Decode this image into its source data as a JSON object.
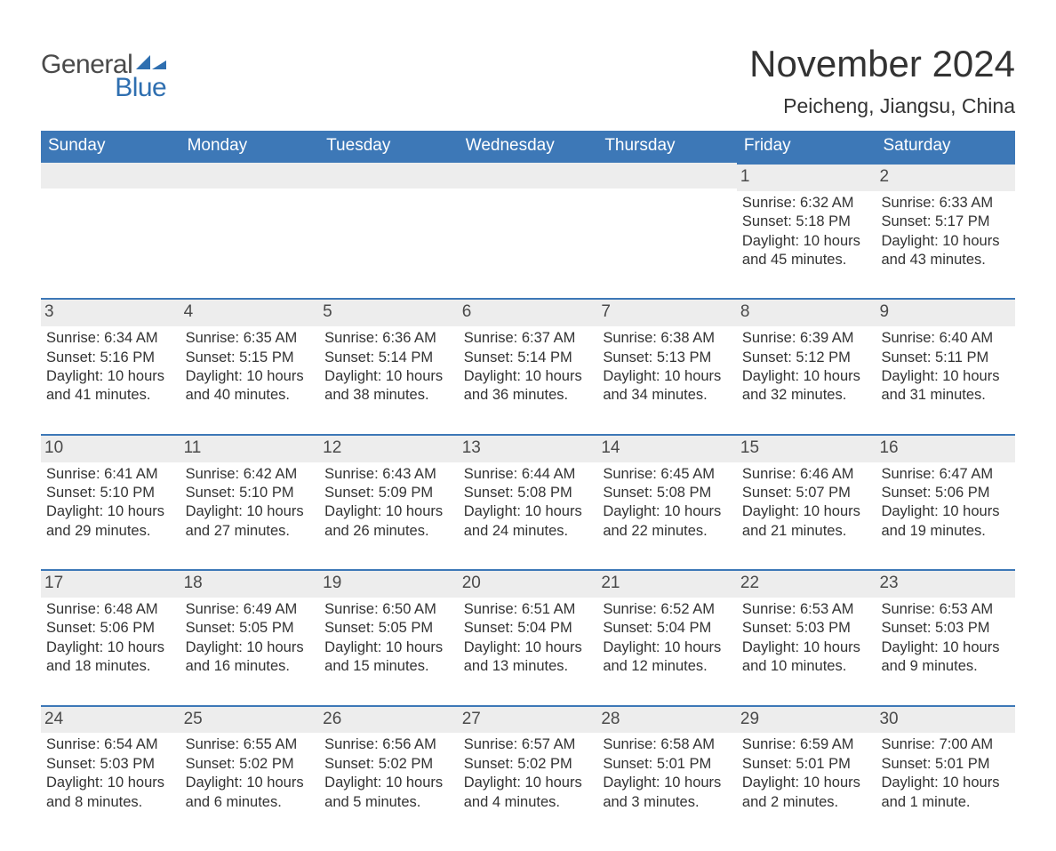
{
  "logo": {
    "text_general": "General",
    "text_blue": "Blue",
    "flag_color": "#2f6fb0"
  },
  "header": {
    "month_title": "November 2024",
    "location": "Peicheng, Jiangsu, China"
  },
  "calendar": {
    "header_bg": "#3d78b7",
    "header_text_color": "#ffffff",
    "daynum_bg": "#ededed",
    "daynum_border": "#3d78b7",
    "text_color": "#333333",
    "background_color": "#ffffff",
    "day_headers": [
      "Sunday",
      "Monday",
      "Tuesday",
      "Wednesday",
      "Thursday",
      "Friday",
      "Saturday"
    ],
    "weeks": [
      [
        null,
        null,
        null,
        null,
        null,
        {
          "num": "1",
          "sunrise": "Sunrise: 6:32 AM",
          "sunset": "Sunset: 5:18 PM",
          "daylight": "Daylight: 10 hours and 45 minutes."
        },
        {
          "num": "2",
          "sunrise": "Sunrise: 6:33 AM",
          "sunset": "Sunset: 5:17 PM",
          "daylight": "Daylight: 10 hours and 43 minutes."
        }
      ],
      [
        {
          "num": "3",
          "sunrise": "Sunrise: 6:34 AM",
          "sunset": "Sunset: 5:16 PM",
          "daylight": "Daylight: 10 hours and 41 minutes."
        },
        {
          "num": "4",
          "sunrise": "Sunrise: 6:35 AM",
          "sunset": "Sunset: 5:15 PM",
          "daylight": "Daylight: 10 hours and 40 minutes."
        },
        {
          "num": "5",
          "sunrise": "Sunrise: 6:36 AM",
          "sunset": "Sunset: 5:14 PM",
          "daylight": "Daylight: 10 hours and 38 minutes."
        },
        {
          "num": "6",
          "sunrise": "Sunrise: 6:37 AM",
          "sunset": "Sunset: 5:14 PM",
          "daylight": "Daylight: 10 hours and 36 minutes."
        },
        {
          "num": "7",
          "sunrise": "Sunrise: 6:38 AM",
          "sunset": "Sunset: 5:13 PM",
          "daylight": "Daylight: 10 hours and 34 minutes."
        },
        {
          "num": "8",
          "sunrise": "Sunrise: 6:39 AM",
          "sunset": "Sunset: 5:12 PM",
          "daylight": "Daylight: 10 hours and 32 minutes."
        },
        {
          "num": "9",
          "sunrise": "Sunrise: 6:40 AM",
          "sunset": "Sunset: 5:11 PM",
          "daylight": "Daylight: 10 hours and 31 minutes."
        }
      ],
      [
        {
          "num": "10",
          "sunrise": "Sunrise: 6:41 AM",
          "sunset": "Sunset: 5:10 PM",
          "daylight": "Daylight: 10 hours and 29 minutes."
        },
        {
          "num": "11",
          "sunrise": "Sunrise: 6:42 AM",
          "sunset": "Sunset: 5:10 PM",
          "daylight": "Daylight: 10 hours and 27 minutes."
        },
        {
          "num": "12",
          "sunrise": "Sunrise: 6:43 AM",
          "sunset": "Sunset: 5:09 PM",
          "daylight": "Daylight: 10 hours and 26 minutes."
        },
        {
          "num": "13",
          "sunrise": "Sunrise: 6:44 AM",
          "sunset": "Sunset: 5:08 PM",
          "daylight": "Daylight: 10 hours and 24 minutes."
        },
        {
          "num": "14",
          "sunrise": "Sunrise: 6:45 AM",
          "sunset": "Sunset: 5:08 PM",
          "daylight": "Daylight: 10 hours and 22 minutes."
        },
        {
          "num": "15",
          "sunrise": "Sunrise: 6:46 AM",
          "sunset": "Sunset: 5:07 PM",
          "daylight": "Daylight: 10 hours and 21 minutes."
        },
        {
          "num": "16",
          "sunrise": "Sunrise: 6:47 AM",
          "sunset": "Sunset: 5:06 PM",
          "daylight": "Daylight: 10 hours and 19 minutes."
        }
      ],
      [
        {
          "num": "17",
          "sunrise": "Sunrise: 6:48 AM",
          "sunset": "Sunset: 5:06 PM",
          "daylight": "Daylight: 10 hours and 18 minutes."
        },
        {
          "num": "18",
          "sunrise": "Sunrise: 6:49 AM",
          "sunset": "Sunset: 5:05 PM",
          "daylight": "Daylight: 10 hours and 16 minutes."
        },
        {
          "num": "19",
          "sunrise": "Sunrise: 6:50 AM",
          "sunset": "Sunset: 5:05 PM",
          "daylight": "Daylight: 10 hours and 15 minutes."
        },
        {
          "num": "20",
          "sunrise": "Sunrise: 6:51 AM",
          "sunset": "Sunset: 5:04 PM",
          "daylight": "Daylight: 10 hours and 13 minutes."
        },
        {
          "num": "21",
          "sunrise": "Sunrise: 6:52 AM",
          "sunset": "Sunset: 5:04 PM",
          "daylight": "Daylight: 10 hours and 12 minutes."
        },
        {
          "num": "22",
          "sunrise": "Sunrise: 6:53 AM",
          "sunset": "Sunset: 5:03 PM",
          "daylight": "Daylight: 10 hours and 10 minutes."
        },
        {
          "num": "23",
          "sunrise": "Sunrise: 6:53 AM",
          "sunset": "Sunset: 5:03 PM",
          "daylight": "Daylight: 10 hours and 9 minutes."
        }
      ],
      [
        {
          "num": "24",
          "sunrise": "Sunrise: 6:54 AM",
          "sunset": "Sunset: 5:03 PM",
          "daylight": "Daylight: 10 hours and 8 minutes."
        },
        {
          "num": "25",
          "sunrise": "Sunrise: 6:55 AM",
          "sunset": "Sunset: 5:02 PM",
          "daylight": "Daylight: 10 hours and 6 minutes."
        },
        {
          "num": "26",
          "sunrise": "Sunrise: 6:56 AM",
          "sunset": "Sunset: 5:02 PM",
          "daylight": "Daylight: 10 hours and 5 minutes."
        },
        {
          "num": "27",
          "sunrise": "Sunrise: 6:57 AM",
          "sunset": "Sunset: 5:02 PM",
          "daylight": "Daylight: 10 hours and 4 minutes."
        },
        {
          "num": "28",
          "sunrise": "Sunrise: 6:58 AM",
          "sunset": "Sunset: 5:01 PM",
          "daylight": "Daylight: 10 hours and 3 minutes."
        },
        {
          "num": "29",
          "sunrise": "Sunrise: 6:59 AM",
          "sunset": "Sunset: 5:01 PM",
          "daylight": "Daylight: 10 hours and 2 minutes."
        },
        {
          "num": "30",
          "sunrise": "Sunrise: 7:00 AM",
          "sunset": "Sunset: 5:01 PM",
          "daylight": "Daylight: 10 hours and 1 minute."
        }
      ]
    ]
  }
}
